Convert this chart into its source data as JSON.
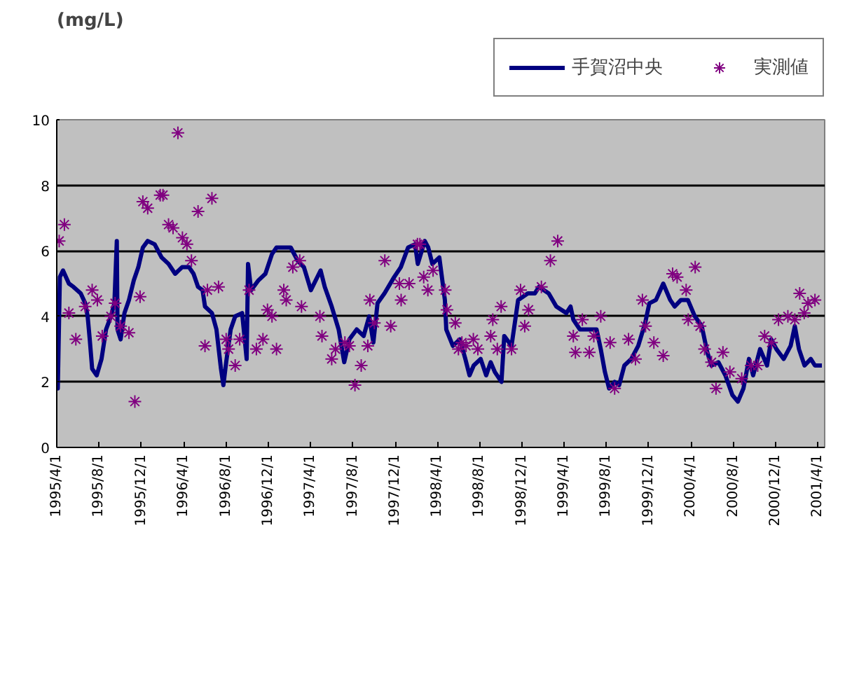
{
  "chart_data": {
    "type": "line",
    "ylabel": "(mg/L)",
    "xlim": [
      "1995-04-01",
      "2001-04-21"
    ],
    "ylim": [
      0,
      10
    ],
    "yticks": [
      0,
      2,
      4,
      6,
      8,
      10
    ],
    "xticks": [
      {
        "value": "1995-04-01",
        "label": "1995/4/1"
      },
      {
        "value": "1995-08-01",
        "label": "1995/8/1"
      },
      {
        "value": "1995-12-01",
        "label": "1995/12/1"
      },
      {
        "value": "1996-04-01",
        "label": "1996/4/1"
      },
      {
        "value": "1996-08-01",
        "label": "1996/8/1"
      },
      {
        "value": "1996-12-01",
        "label": "1996/12/1"
      },
      {
        "value": "1997-04-01",
        "label": "1997/4/1"
      },
      {
        "value": "1997-08-01",
        "label": "1997/8/1"
      },
      {
        "value": "1997-12-01",
        "label": "1997/12/1"
      },
      {
        "value": "1998-04-01",
        "label": "1998/4/1"
      },
      {
        "value": "1998-08-01",
        "label": "1998/8/1"
      },
      {
        "value": "1998-12-01",
        "label": "1998/12/1"
      },
      {
        "value": "1999-04-01",
        "label": "1999/4/1"
      },
      {
        "value": "1999-08-01",
        "label": "1999/8/1"
      },
      {
        "value": "1999-12-01",
        "label": "1999/12/1"
      },
      {
        "value": "2000-04-01",
        "label": "2000/4/1"
      },
      {
        "value": "2000-08-01",
        "label": "2000/8/1"
      },
      {
        "value": "2000-12-01",
        "label": "2000/12/1"
      },
      {
        "value": "2001-04-01",
        "label": "2001/4/1"
      }
    ],
    "grid": "y",
    "legend": "top right",
    "series": [
      {
        "name": "手賀沼中央",
        "color": "#000080",
        "marker": "none",
        "line_style": "solid",
        "x": [
          "1995-04-01",
          "1995-04-04",
          "1995-04-10",
          "1995-04-19",
          "1995-05-06",
          "1995-05-19",
          "1995-06-09",
          "1995-06-22",
          "1995-06-29",
          "1995-07-05",
          "1995-07-12",
          "1995-07-25",
          "1995-08-08",
          "1995-08-21",
          "1995-09-04",
          "1995-09-14",
          "1995-09-21",
          "1995-09-23",
          "1995-10-02",
          "1995-10-13",
          "1995-10-26",
          "1995-11-09",
          "1995-11-22",
          "1995-12-05",
          "1995-12-19",
          "1996-01-08",
          "1996-01-28",
          "1996-02-17",
          "1996-03-07",
          "1996-03-27",
          "1996-04-16",
          "1996-04-29",
          "1996-05-12",
          "1996-05-25",
          "1996-06-01",
          "1996-06-21",
          "1996-07-04",
          "1996-07-17",
          "1996-07-24",
          "1996-08-01",
          "1996-08-14",
          "1996-08-27",
          "1996-09-16",
          "1996-09-29",
          "1996-10-03",
          "1996-10-12",
          "1996-11-02",
          "1996-11-22",
          "1996-12-11",
          "1996-12-24",
          "1997-01-14",
          "1997-02-03",
          "1997-02-23",
          "1997-03-13",
          "1997-04-02",
          "1997-04-30",
          "1997-05-12",
          "1997-06-01",
          "1997-06-21",
          "1997-07-07",
          "1997-07-22",
          "1997-08-12",
          "1997-09-01",
          "1997-09-17",
          "1997-09-29",
          "1997-10-11",
          "1997-10-31",
          "1997-11-28",
          "1997-12-17",
          "1998-01-07",
          "1998-01-27",
          "1998-02-04",
          "1998-02-24",
          "1998-03-06",
          "1998-03-18",
          "1998-04-07",
          "1998-04-23",
          "1998-04-27",
          "1998-05-16",
          "1998-06-05",
          "1998-06-21",
          "1998-07-03",
          "1998-07-15",
          "1998-08-04",
          "1998-08-20",
          "1998-09-02",
          "1998-09-14",
          "1998-10-03",
          "1998-10-11",
          "1998-11-01",
          "1998-11-20",
          "1998-12-18",
          "1999-01-07",
          "1999-01-19",
          "1999-02-16",
          "1999-03-10",
          "1999-04-08",
          "1999-04-20",
          "1999-04-28",
          "1999-05-17",
          "1999-06-14",
          "1999-07-04",
          "1999-07-16",
          "1999-07-28",
          "1999-08-09",
          "1999-08-25",
          "1999-09-07",
          "1999-09-22",
          "1999-10-12",
          "1999-11-01",
          "1999-11-21",
          "1999-12-03",
          "1999-12-22",
          "2000-01-12",
          "2000-02-01",
          "2000-02-14",
          "2000-03-03",
          "2000-03-23",
          "2000-04-12",
          "2000-05-02",
          "2000-05-18",
          "2000-05-30",
          "2000-06-19",
          "2000-07-09",
          "2000-07-29",
          "2000-08-14",
          "2000-08-30",
          "2000-09-15",
          "2000-09-27",
          "2000-10-17",
          "2000-11-06",
          "2000-11-18",
          "2000-12-03",
          "2000-12-24",
          "2001-01-13",
          "2001-01-25",
          "2001-02-06",
          "2001-02-22",
          "2001-03-12",
          "2001-03-24",
          "2001-04-13"
        ],
        "values": [
          2.9,
          1.8,
          5.2,
          5.4,
          5.0,
          4.9,
          4.7,
          4.4,
          4.0,
          3.3,
          2.4,
          2.2,
          2.7,
          3.6,
          4.0,
          4.4,
          6.3,
          3.6,
          3.3,
          4.1,
          4.5,
          5.1,
          5.5,
          6.1,
          6.3,
          6.2,
          5.8,
          5.6,
          5.3,
          5.5,
          5.5,
          5.3,
          4.9,
          4.8,
          4.3,
          4.1,
          3.6,
          2.4,
          1.9,
          2.6,
          3.6,
          4.0,
          4.1,
          2.7,
          5.6,
          4.8,
          5.1,
          5.3,
          5.9,
          6.1,
          6.1,
          6.1,
          5.7,
          5.5,
          4.8,
          5.4,
          4.9,
          4.3,
          3.6,
          2.6,
          3.3,
          3.6,
          3.4,
          4.0,
          3.2,
          4.4,
          4.7,
          5.2,
          5.5,
          6.1,
          6.2,
          5.6,
          6.3,
          6.1,
          5.6,
          5.8,
          4.5,
          3.6,
          3.1,
          3.3,
          2.7,
          2.2,
          2.5,
          2.7,
          2.2,
          2.6,
          2.3,
          2.0,
          3.4,
          3.1,
          4.5,
          4.7,
          4.7,
          4.9,
          4.7,
          4.3,
          4.1,
          4.3,
          3.9,
          3.6,
          3.6,
          3.6,
          3.0,
          2.3,
          1.8,
          2.0,
          1.9,
          2.5,
          2.7,
          3.1,
          3.8,
          4.4,
          4.5,
          5.0,
          4.5,
          4.3,
          4.5,
          4.5,
          4.0,
          3.7,
          2.9,
          2.5,
          2.6,
          2.2,
          1.6,
          1.4,
          1.8,
          2.7,
          2.2,
          3.0,
          2.5,
          3.3,
          3.0,
          2.7,
          3.1,
          3.7,
          3.0,
          2.5,
          2.7,
          2.5,
          2.5
        ]
      },
      {
        "name": "実測値",
        "type": "scatter",
        "color": "#800080",
        "marker": "cross",
        "x": [
          "1995-04-08",
          "1995-04-23",
          "1995-05-06",
          "1995-05-26",
          "1995-06-22",
          "1995-07-12",
          "1995-07-27",
          "1995-08-10",
          "1995-09-04",
          "1995-09-16",
          "1995-10-02",
          "1995-10-26",
          "1995-11-12",
          "1995-11-27",
          "1995-12-05",
          "1995-12-19",
          "1996-01-24",
          "1996-02-01",
          "1996-02-17",
          "1996-03-01",
          "1996-03-15",
          "1996-03-28",
          "1996-04-10",
          "1996-04-23",
          "1996-05-12",
          "1996-06-01",
          "1996-06-08",
          "1996-06-21",
          "1996-07-10",
          "1996-08-01",
          "1996-08-08",
          "1996-08-27",
          "1996-09-09",
          "1996-10-06",
          "1996-10-27",
          "1996-11-15",
          "1996-11-28",
          "1996-12-11",
          "1996-12-24",
          "1997-01-14",
          "1997-01-21",
          "1997-02-09",
          "1997-03-01",
          "1997-03-06",
          "1997-04-28",
          "1997-05-04",
          "1997-06-01",
          "1997-06-12",
          "1997-07-09",
          "1997-07-22",
          "1997-08-07",
          "1997-08-25",
          "1997-09-13",
          "1997-09-19",
          "1997-10-02",
          "1997-11-01",
          "1997-11-18",
          "1997-12-13",
          "1997-12-18",
          "1998-01-10",
          "1998-02-03",
          "1998-02-10",
          "1998-02-21",
          "1998-03-05",
          "1998-03-20",
          "1998-04-24",
          "1998-04-29",
          "1998-05-23",
          "1998-06-01",
          "1998-06-11",
          "1998-06-23",
          "1998-07-14",
          "1998-07-27",
          "1998-09-02",
          "1998-09-08",
          "1998-09-21",
          "1998-10-02",
          "1998-11-01",
          "1998-11-27",
          "1998-12-09",
          "1998-12-20",
          "1999-01-26",
          "1999-02-21",
          "1999-03-14",
          "1999-04-28",
          "1999-05-04",
          "1999-05-24",
          "1999-06-13",
          "1999-06-26",
          "1999-07-16",
          "1999-08-12",
          "1999-08-25",
          "1999-10-04",
          "1999-10-24",
          "1999-11-13",
          "1999-11-22",
          "1999-12-16",
          "2000-01-12",
          "2000-02-08",
          "2000-02-21",
          "2000-03-18",
          "2000-03-24",
          "2000-04-13",
          "2000-04-27",
          "2000-05-10",
          "2000-05-30",
          "2000-06-12",
          "2000-07-02",
          "2000-07-22",
          "2000-08-25",
          "2000-09-21",
          "2000-10-10",
          "2000-10-30",
          "2000-11-19",
          "2000-12-09",
          "2001-01-05",
          "2001-01-25",
          "2001-02-08",
          "2001-02-21",
          "2001-03-04",
          "2001-03-24"
        ],
        "values": [
          6.3,
          6.8,
          4.1,
          3.3,
          4.3,
          4.8,
          4.5,
          3.4,
          4.0,
          4.4,
          3.7,
          3.5,
          1.4,
          4.6,
          7.5,
          7.3,
          7.7,
          7.7,
          6.8,
          6.7,
          9.6,
          6.4,
          6.2,
          5.7,
          7.2,
          3.1,
          4.8,
          7.6,
          4.9,
          3.3,
          3.0,
          2.5,
          3.3,
          4.8,
          3.0,
          3.3,
          4.2,
          4.0,
          3.0,
          4.8,
          4.5,
          5.5,
          5.7,
          4.3,
          4.0,
          3.4,
          2.7,
          3.0,
          3.2,
          3.1,
          1.9,
          2.5,
          3.1,
          4.5,
          3.8,
          5.7,
          3.7,
          5.0,
          4.5,
          5.0,
          6.2,
          6.2,
          5.2,
          4.8,
          5.4,
          4.8,
          4.2,
          3.8,
          3.0,
          3.2,
          3.1,
          3.3,
          3.0,
          3.4,
          3.9,
          3.0,
          4.3,
          3.0,
          4.8,
          3.7,
          4.2,
          4.9,
          5.7,
          6.3,
          3.4,
          2.9,
          3.9,
          2.9,
          3.4,
          4.0,
          3.2,
          1.8,
          3.3,
          2.7,
          4.5,
          3.7,
          3.2,
          2.8,
          5.3,
          5.2,
          4.8,
          3.9,
          5.5,
          3.7,
          3.0,
          2.6,
          1.8,
          2.9,
          2.3,
          2.1,
          2.5,
          2.5,
          3.4,
          3.2,
          3.9,
          4.0,
          3.9,
          4.7,
          4.1,
          4.4,
          4.5
        ]
      }
    ]
  }
}
